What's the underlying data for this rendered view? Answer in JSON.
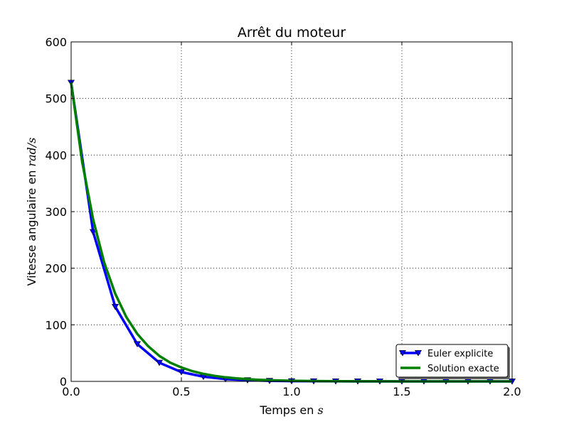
{
  "chart_data": {
    "type": "line",
    "title": "Arrêt du moteur",
    "xlabel_text": "Temps en ",
    "xlabel_math": "s",
    "ylabel_text": "Vitesse angulaire en ",
    "ylabel_math": "rad/s",
    "xlim": [
      0.0,
      2.0
    ],
    "ylim": [
      0,
      600
    ],
    "x_ticks": [
      "0.0",
      "0.5",
      "1.0",
      "1.5",
      "2.0"
    ],
    "y_ticks": [
      "0",
      "100",
      "200",
      "300",
      "400",
      "500",
      "600"
    ],
    "grid": true,
    "legend_position": "bottom-right",
    "series": [
      {
        "name": "Euler explicite",
        "color": "#0000ff",
        "marker": "triangle-down",
        "x": [
          0.0,
          0.1,
          0.2,
          0.3,
          0.4,
          0.5,
          0.6,
          0.7,
          0.8,
          0.9,
          1.0,
          1.1,
          1.2,
          1.3,
          1.4,
          1.5,
          1.6,
          1.7,
          1.8,
          1.9,
          2.0
        ],
        "y": [
          528,
          264,
          132,
          66,
          33,
          16.5,
          8.25,
          4.1,
          2.1,
          1.0,
          0.5,
          0.26,
          0.13,
          0.06,
          0.03,
          0.02,
          0.01,
          0.0,
          0.0,
          0.0,
          0.0
        ]
      },
      {
        "name": "Solution exacte",
        "color": "#008000",
        "marker": "none",
        "x": [
          0.0,
          0.05,
          0.1,
          0.15,
          0.2,
          0.25,
          0.3,
          0.35,
          0.4,
          0.45,
          0.5,
          0.55,
          0.6,
          0.65,
          0.7,
          0.75,
          0.8,
          0.85,
          0.9,
          0.95,
          1.0,
          1.1,
          1.2,
          1.3,
          1.4,
          1.5,
          1.6,
          1.7,
          1.8,
          1.9,
          2.0
        ],
        "y": [
          528,
          388,
          286,
          210,
          155,
          114,
          84,
          62,
          45,
          33,
          24.6,
          18.1,
          13.3,
          9.8,
          7.2,
          5.3,
          3.9,
          2.9,
          2.1,
          1.6,
          1.15,
          0.63,
          0.34,
          0.18,
          0.1,
          0.05,
          0.03,
          0.02,
          0.01,
          0.0,
          0.0
        ]
      }
    ]
  }
}
